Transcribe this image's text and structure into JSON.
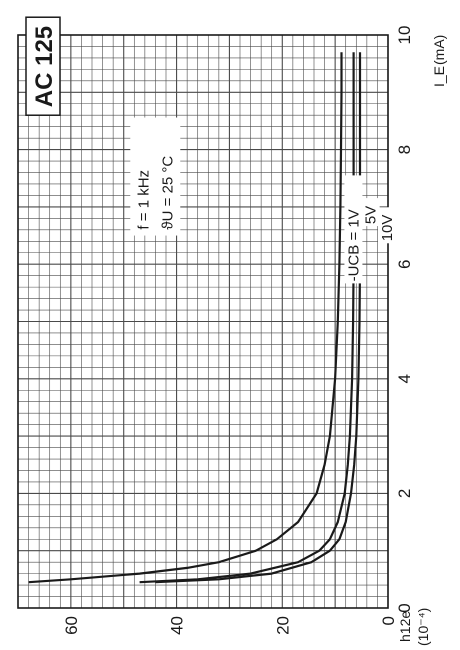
{
  "chart_data": {
    "type": "line",
    "title": "AC 125",
    "xlabel": "I_E",
    "xunit": "(mA)",
    "ylabel": "h12e",
    "yunit": "(10⁻⁴)",
    "xlim": [
      0,
      10
    ],
    "ylim": [
      0,
      70
    ],
    "x_ticks": [
      "0",
      "2",
      "4",
      "6",
      "8",
      "10"
    ],
    "y_ticks": [
      "0",
      "20",
      "40",
      "60"
    ],
    "grid": true,
    "conditions": [
      "f   = 1 kHz",
      "ϑU  = 25 °C"
    ],
    "series": [
      {
        "name": "-UCB = 1V",
        "x": [
          0.45,
          0.5,
          0.6,
          0.7,
          0.8,
          1.0,
          1.2,
          1.5,
          2.0,
          2.5,
          3.0,
          4.0,
          5.0,
          6.0,
          7.0,
          8.0,
          9.0,
          9.7
        ],
        "y": [
          68,
          60,
          47,
          38,
          32,
          25,
          21,
          17,
          13.5,
          12,
          11,
          10,
          9.5,
          9.2,
          9.0,
          8.9,
          8.8,
          8.8
        ]
      },
      {
        "name": "5V",
        "x": [
          0.45,
          0.5,
          0.6,
          0.8,
          1.0,
          1.2,
          1.5,
          2.0,
          2.5,
          3.0,
          4.0,
          5.0,
          6.0,
          7.0,
          8.0,
          9.0,
          9.7
        ],
        "y": [
          47,
          36,
          26,
          17,
          13,
          11,
          9.5,
          8.2,
          7.6,
          7.2,
          6.8,
          6.6,
          6.5,
          6.5,
          6.5,
          6.5,
          6.5
        ]
      },
      {
        "name": "10V",
        "x": [
          0.45,
          0.5,
          0.6,
          0.8,
          1.0,
          1.2,
          1.5,
          2.0,
          2.5,
          3.0,
          4.0,
          5.0,
          6.0,
          7.0,
          8.0,
          9.0,
          9.7
        ],
        "y": [
          44,
          32,
          22,
          14.5,
          11,
          9.2,
          8.0,
          7.0,
          6.4,
          6.0,
          5.6,
          5.4,
          5.3,
          5.3,
          5.3,
          5.3,
          5.3
        ]
      }
    ]
  },
  "colors": {
    "grid": "#4a4a4a",
    "curve": "#1a1a1a",
    "frame": "#1a1a1a"
  }
}
